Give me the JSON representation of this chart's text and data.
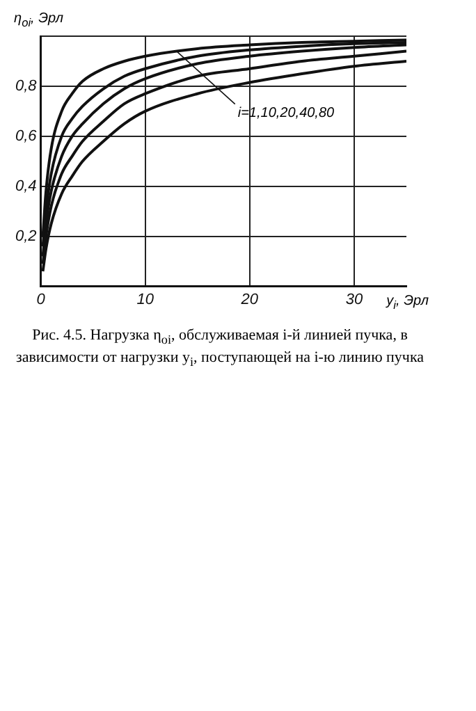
{
  "chart_data": {
    "type": "line",
    "ylabel": "η$_{oi}$, Эрл",
    "xlabel": "y$_{i}$, Эрл",
    "x": [
      0.2,
      0.5,
      1,
      2,
      3,
      4,
      6,
      8,
      10,
      15,
      20,
      25,
      30,
      35
    ],
    "series": [
      {
        "color": "#111111",
        "values": [
          0.2,
          0.38,
          0.55,
          0.7,
          0.77,
          0.82,
          0.87,
          0.9,
          0.92,
          0.95,
          0.965,
          0.975,
          0.98,
          0.985
        ]
      },
      {
        "color": "#111111",
        "values": [
          0.16,
          0.3,
          0.45,
          0.6,
          0.67,
          0.72,
          0.79,
          0.84,
          0.87,
          0.92,
          0.945,
          0.96,
          0.97,
          0.975
        ]
      },
      {
        "color": "#111111",
        "values": [
          0.12,
          0.25,
          0.38,
          0.52,
          0.6,
          0.65,
          0.73,
          0.79,
          0.83,
          0.89,
          0.92,
          0.94,
          0.955,
          0.965
        ]
      },
      {
        "color": "#111111",
        "values": [
          0.09,
          0.2,
          0.32,
          0.45,
          0.52,
          0.58,
          0.66,
          0.73,
          0.77,
          0.84,
          0.87,
          0.9,
          0.92,
          0.94
        ]
      },
      {
        "color": "#111111",
        "values": [
          0.06,
          0.15,
          0.25,
          0.37,
          0.44,
          0.5,
          0.58,
          0.65,
          0.7,
          0.77,
          0.815,
          0.85,
          0.88,
          0.9
        ]
      }
    ],
    "xlim": [
      0,
      35
    ],
    "xticks": [
      0,
      10,
      20,
      30
    ],
    "ylim": [
      0,
      1
    ],
    "yticks": [
      {
        "value": 0,
        "label": null
      },
      {
        "value": 0.2,
        "label": "0,2"
      },
      {
        "value": 0.4,
        "label": "0,4"
      },
      {
        "value": 0.6,
        "label": "0,6"
      },
      {
        "value": 0.8,
        "label": "0,8"
      },
      {
        "value": 1,
        "label": null
      }
    ],
    "annotations": [
      {
        "text": "i=1,10,20,40,80",
        "x": 13,
        "y": 0.94
      },
      "Рис. 4.5. Нагрузка η$_{oi}$, обслуживаемая i-й линией пучка, в зависимости от нагрузки y$_{i}$, поступающей на i-ю линию пучка"
    ],
    "grid": true,
    "legend": false,
    "marker": "none",
    "line_style": "solid"
  }
}
